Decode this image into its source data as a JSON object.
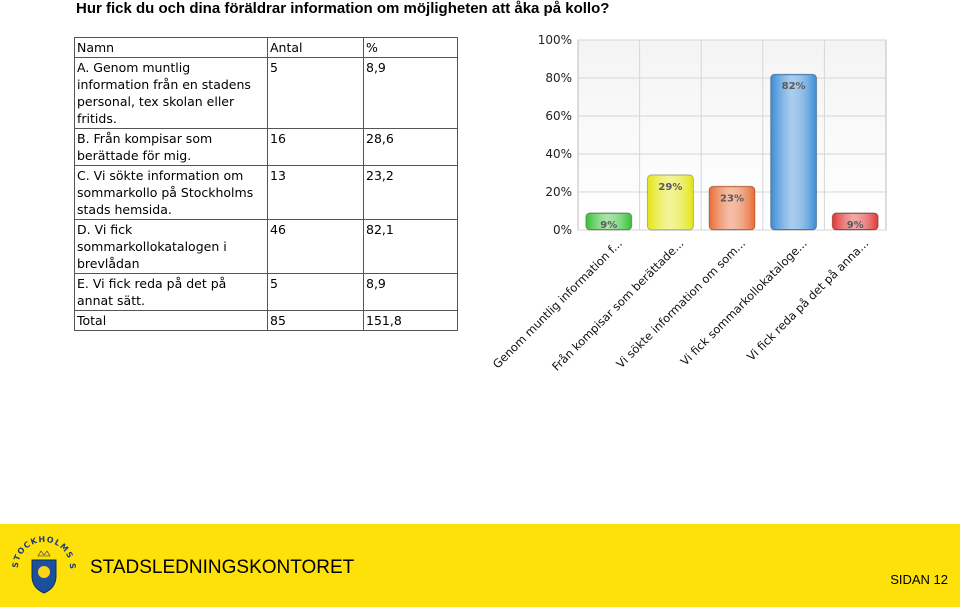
{
  "page": {
    "title": "Hur fick du och dina föräldrar information om möjligheten att åka på kollo?"
  },
  "table": {
    "headers": [
      "Namn",
      "Antal",
      "%"
    ],
    "rows": [
      {
        "name": "A. Genom muntlig information från en stadens personal, tex skolan eller fritids.",
        "count": "5",
        "percent": "8,9"
      },
      {
        "name": "B. Från kompisar som berättade för mig.",
        "count": "16",
        "percent": "28,6"
      },
      {
        "name": "C. Vi sökte information om sommarkollo på Stockholms stads hemsida.",
        "count": "13",
        "percent": "23,2"
      },
      {
        "name": "D. Vi fick sommarkollokatalogen i brevlådan",
        "count": "46",
        "percent": "82,1"
      },
      {
        "name": "E. Vi fick reda på det på annat sätt.",
        "count": "5",
        "percent": "8,9"
      }
    ],
    "total": {
      "name": "Total",
      "count": "85",
      "percent": "151,8"
    }
  },
  "chart_data": {
    "type": "bar",
    "categories": [
      "Genom muntlig information f...",
      "Från kompisar som berättade...",
      "Vi sökte information om som...",
      "Vi fick sommarkollokataloge...",
      "Vi fick reda på det på anna..."
    ],
    "values": [
      9,
      29,
      23,
      82,
      9
    ],
    "value_labels": [
      "9%",
      "29%",
      "23%",
      "82%",
      "9%"
    ],
    "colors": [
      "#3fc13f",
      "#e4e61c",
      "#e8703a",
      "#3f8fd8",
      "#e03c3c"
    ],
    "ylim": [
      0,
      100
    ],
    "yticks": [
      "0%",
      "20%",
      "40%",
      "60%",
      "80%",
      "100%"
    ],
    "grid": true
  },
  "footer": {
    "office": "STADSLEDNINGSKONTORET",
    "page_label": "SIDAN 12",
    "logo_text": "STOCKHOLMS STAD"
  }
}
